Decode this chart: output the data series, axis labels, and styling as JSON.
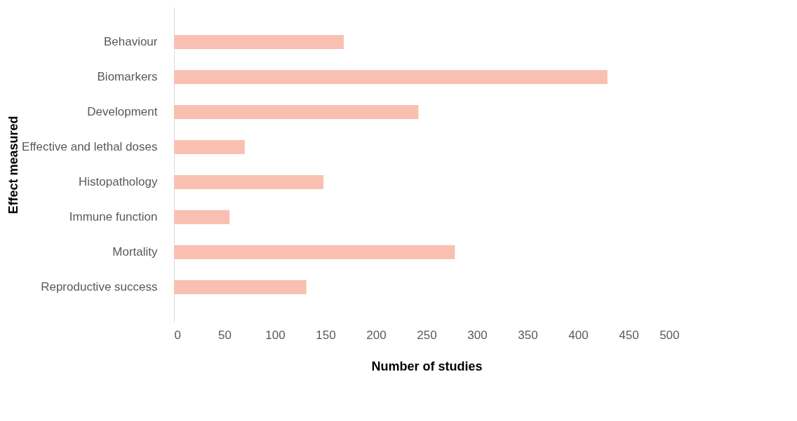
{
  "chart_data": {
    "type": "bar",
    "orientation": "horizontal",
    "xlabel": "Number of studies",
    "ylabel": "Effect measured",
    "categories": [
      "Behaviour",
      "Biomarkers",
      "Development",
      "Effective and lethal doses",
      "Histopathology",
      "Immune function",
      "Mortality",
      "Reproductive success"
    ],
    "values": [
      168,
      429,
      242,
      70,
      148,
      55,
      278,
      131
    ],
    "color": "#f9c0b2",
    "xlim": [
      0,
      500
    ],
    "xticks": [
      0,
      50,
      100,
      150,
      200,
      250,
      300,
      350,
      400,
      450,
      500
    ],
    "grid": false
  }
}
